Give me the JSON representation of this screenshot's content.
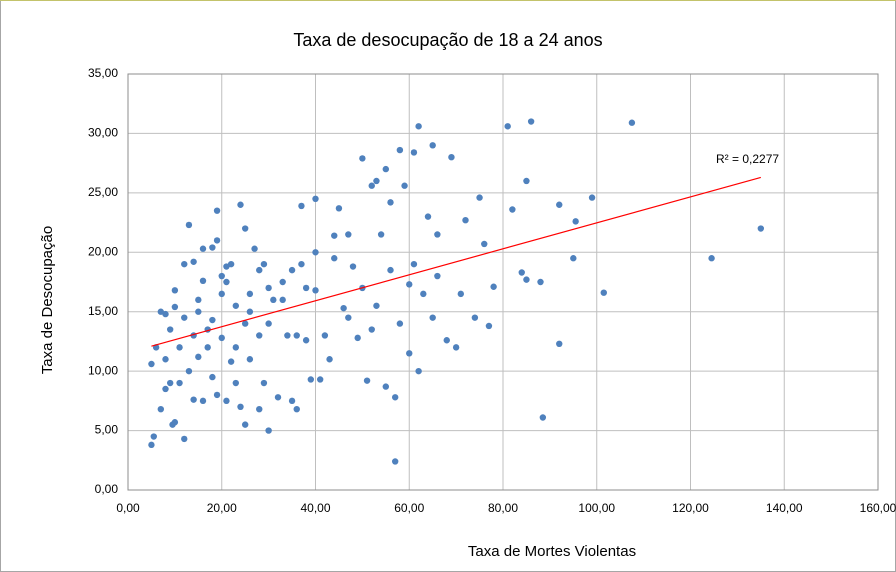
{
  "chart_data": {
    "type": "scatter",
    "title": "Taxa de desocupação de 18 a 24 anos",
    "x_label": "Taxa de Mortes Violentas",
    "y_label": "Taxa de Desocupação",
    "annotation": "R² = 0,2277",
    "xlim": [
      0,
      160
    ],
    "ylim": [
      0,
      35
    ],
    "xticks": [
      {
        "value": 0,
        "label": "0,00"
      },
      {
        "value": 20,
        "label": "20,00"
      },
      {
        "value": 40,
        "label": "40,00"
      },
      {
        "value": 60,
        "label": "60,00"
      },
      {
        "value": 80,
        "label": "80,00"
      },
      {
        "value": 100,
        "label": "100,00"
      },
      {
        "value": 120,
        "label": "120,00"
      },
      {
        "value": 140,
        "label": "140,00"
      },
      {
        "value": 160,
        "label": "160,00"
      }
    ],
    "yticks": [
      {
        "value": 0,
        "label": "0,00"
      },
      {
        "value": 5,
        "label": "5,00"
      },
      {
        "value": 10,
        "label": "10,00"
      },
      {
        "value": 15,
        "label": "15,00"
      },
      {
        "value": 20,
        "label": "20,00"
      },
      {
        "value": 25,
        "label": "25,00"
      },
      {
        "value": 30,
        "label": "30,00"
      },
      {
        "value": 35,
        "label": "35,00"
      }
    ],
    "grid": true,
    "color": "#4f81bd",
    "trend_color": "#ff0000",
    "trendline": {
      "x": [
        5,
        135
      ],
      "values": [
        12.1,
        26.3
      ]
    },
    "x": [
      5,
      5.5,
      5,
      6,
      7,
      7,
      8,
      8,
      8,
      9,
      9,
      9.5,
      10,
      10,
      10,
      11,
      11,
      12,
      12,
      13,
      13,
      14,
      14,
      14,
      15,
      15,
      16,
      16,
      16,
      17,
      18,
      18,
      18,
      19,
      19,
      19,
      20,
      20,
      20,
      21,
      21,
      22,
      22,
      23,
      23,
      24,
      24,
      25,
      25,
      25,
      26,
      26,
      27,
      28,
      28,
      28,
      29,
      29,
      30,
      30,
      31,
      32,
      33,
      34,
      35,
      35,
      36,
      37,
      37,
      38,
      38,
      39,
      40,
      40,
      40,
      41,
      42,
      43,
      44,
      45,
      46,
      47,
      48,
      49,
      50,
      50,
      51,
      52,
      52,
      53,
      54,
      55,
      55,
      56,
      56,
      57,
      57,
      58,
      59,
      60,
      61,
      61,
      62,
      62,
      63,
      64,
      65,
      65,
      66,
      68,
      69,
      70,
      71,
      72,
      74,
      75,
      76,
      77,
      78,
      81,
      82,
      84,
      85,
      85,
      86,
      88,
      88.5,
      92,
      92,
      95,
      95.5,
      99,
      101.5,
      107.5,
      124.5,
      135,
      12,
      15,
      17,
      21,
      23,
      26,
      30,
      33,
      36,
      44,
      47,
      53,
      58,
      60,
      66
    ],
    "values": [
      3.8,
      4.5,
      10.6,
      12,
      15,
      6.8,
      8.5,
      11,
      14.8,
      9,
      13.5,
      5.5,
      5.7,
      15.4,
      16.8,
      12,
      9,
      4.3,
      19,
      22.3,
      10,
      13,
      7.6,
      19.2,
      15,
      11.2,
      7.5,
      17.6,
      20.3,
      12,
      20.4,
      14.3,
      9.5,
      8,
      21,
      23.5,
      18,
      16.5,
      12.8,
      18.8,
      7.5,
      10.8,
      19,
      15.5,
      9,
      24,
      7,
      22,
      5.5,
      14,
      16.5,
      11,
      20.3,
      18.5,
      13,
      6.8,
      9,
      19,
      5,
      14,
      16,
      7.8,
      17.5,
      13,
      18.5,
      7.5,
      6.8,
      23.9,
      19,
      12.6,
      17,
      9.3,
      24.5,
      20,
      16.8,
      9.3,
      13,
      11,
      21.4,
      23.7,
      15.3,
      21.5,
      18.8,
      12.8,
      27.9,
      17,
      9.2,
      25.6,
      13.5,
      26,
      21.5,
      8.7,
      27,
      24.2,
      18.5,
      2.4,
      7.8,
      28.6,
      25.6,
      17.3,
      19,
      28.4,
      30.6,
      10,
      16.5,
      23,
      29,
      14.5,
      21.5,
      12.6,
      28,
      12,
      16.5,
      22.7,
      14.5,
      24.6,
      20.7,
      13.8,
      17.1,
      30.6,
      23.6,
      18.3,
      26,
      17.7,
      31,
      17.5,
      6.1,
      12.3,
      24,
      19.5,
      22.6,
      24.6,
      16.6,
      30.9,
      19.5,
      22,
      14.5,
      16,
      13.5,
      17.5,
      12,
      15,
      17,
      16,
      13,
      19.5,
      14.5,
      15.5,
      14,
      11.5,
      18
    ]
  }
}
